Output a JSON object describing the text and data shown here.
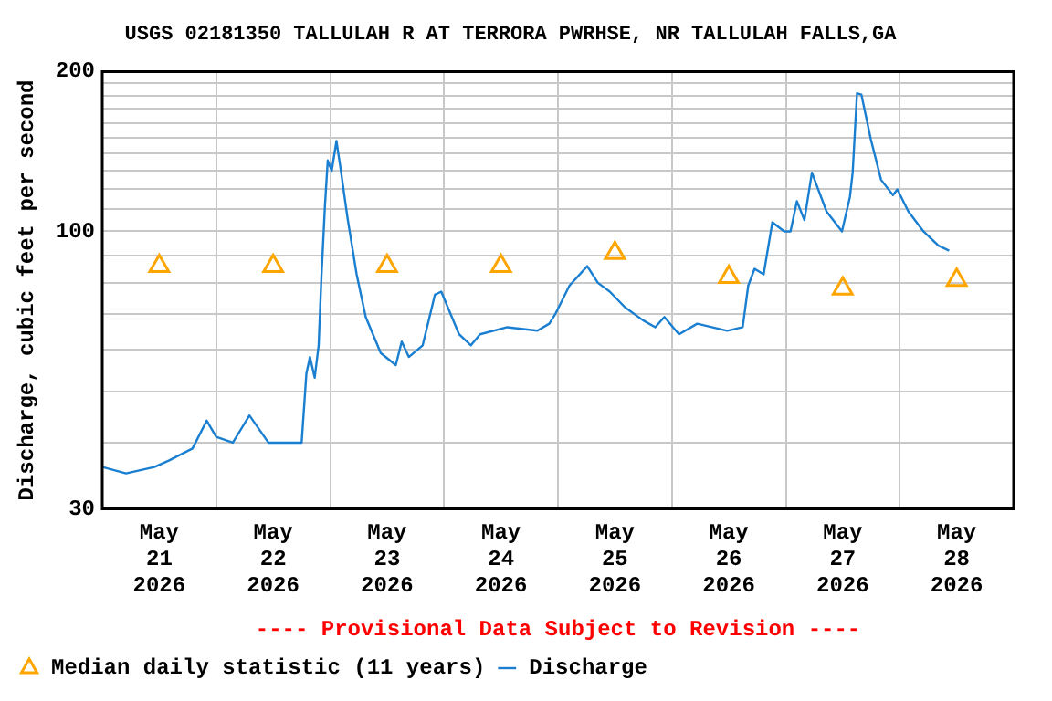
{
  "chart_data": {
    "type": "line",
    "title": "USGS 02181350 TALLULAH R AT TERRORA PWRHSE, NR TALLULAH FALLS,GA",
    "ylabel": "Discharge, cubic feet per second",
    "annotations": [
      "---- Provisional Data Subject to Revision ----"
    ],
    "series": [
      {
        "name": "Median daily statistic (11 years)",
        "type": "scatter",
        "marker": "triangle",
        "color": "#ffa500",
        "x": [
          "2026-05-21T12:00",
          "2026-05-22T12:00",
          "2026-05-23T12:00",
          "2026-05-24T12:00",
          "2026-05-25T12:00",
          "2026-05-26T12:00",
          "2026-05-27T12:00",
          "2026-05-28T12:00"
        ],
        "values": [
          86,
          86,
          86,
          86,
          91,
          82,
          78,
          81
        ]
      },
      {
        "name": "Discharge",
        "marker": "none",
        "color": "#1a7fd0",
        "x": [
          "2026-05-21T00:00",
          "2026-05-21T05:00",
          "2026-05-21T11:00",
          "2026-05-21T14:00",
          "2026-05-21T19:00",
          "2026-05-21T22:00",
          "2026-05-22T00:00",
          "2026-05-22T03:30",
          "2026-05-22T07:00",
          "2026-05-22T11:00",
          "2026-05-22T14:00",
          "2026-05-22T18:00",
          "2026-05-22T19:00",
          "2026-05-22T19:45",
          "2026-05-22T20:45",
          "2026-05-22T21:35",
          "2026-05-22T22:10",
          "2026-05-22T22:55",
          "2026-05-22T23:30",
          "2026-05-23T00:20",
          "2026-05-23T01:20",
          "2026-05-23T02:10",
          "2026-05-23T03:40",
          "2026-05-23T05:35",
          "2026-05-23T07:30",
          "2026-05-23T10:40",
          "2026-05-23T13:50",
          "2026-05-23T15:05",
          "2026-05-23T16:35",
          "2026-05-23T19:30",
          "2026-05-23T22:05",
          "2026-05-23T23:25",
          "2026-05-24T03:10",
          "2026-05-24T05:40",
          "2026-05-24T07:35",
          "2026-05-24T13:20",
          "2026-05-24T19:40",
          "2026-05-24T22:10",
          "2026-05-24T23:30",
          "2026-05-25T02:25",
          "2026-05-25T06:10",
          "2026-05-25T08:25",
          "2026-05-25T10:55",
          "2026-05-25T14:05",
          "2026-05-25T17:55",
          "2026-05-25T20:30",
          "2026-05-25T22:25",
          "2026-05-26T01:30",
          "2026-05-26T05:20",
          "2026-05-26T11:40",
          "2026-05-26T14:55",
          "2026-05-26T16:05",
          "2026-05-26T17:25",
          "2026-05-26T19:20",
          "2026-05-26T21:10",
          "2026-05-26T23:40",
          "2026-05-27T01:00",
          "2026-05-27T02:20",
          "2026-05-27T03:55",
          "2026-05-27T05:30",
          "2026-05-27T08:35",
          "2026-05-27T11:50",
          "2026-05-27T13:30",
          "2026-05-27T14:05",
          "2026-05-27T15:00",
          "2026-05-27T15:55",
          "2026-05-27T17:55",
          "2026-05-27T20:05",
          "2026-05-27T22:35",
          "2026-05-27T23:30",
          "2026-05-28T01:50",
          "2026-05-28T05:00",
          "2026-05-28T08:10",
          "2026-05-28T10:25"
        ],
        "values": [
          36,
          35,
          36,
          37,
          39,
          44,
          41,
          40,
          45,
          40,
          40,
          40,
          54,
          58,
          53,
          61,
          82,
          112,
          136,
          130,
          148,
          132,
          106,
          83,
          69,
          59,
          56,
          62,
          58,
          61,
          76,
          77,
          64,
          61,
          64,
          66,
          65,
          67,
          70,
          79,
          86,
          80,
          77,
          72,
          68,
          66,
          69,
          64,
          67,
          65,
          66,
          79,
          85,
          83,
          104,
          100,
          100,
          114,
          105,
          129,
          109,
          100,
          116,
          129,
          182,
          181,
          149,
          125,
          117,
          120,
          109,
          100,
          94,
          92
        ]
      }
    ],
    "xlim": [
      "2026-05-21T00:00",
      "2026-05-29T00:00"
    ],
    "xticks": [
      {
        "value": "2026-05-21T00:00",
        "label": null
      },
      {
        "value": "2026-05-21T12:00",
        "label": "May 21 2026"
      },
      {
        "value": "2026-05-22T00:00",
        "label": null
      },
      {
        "value": "2026-05-22T12:00",
        "label": "May 22 2026"
      },
      {
        "value": "2026-05-23T00:00",
        "label": null
      },
      {
        "value": "2026-05-23T12:00",
        "label": "May 23 2026"
      },
      {
        "value": "2026-05-24T00:00",
        "label": null
      },
      {
        "value": "2026-05-24T12:00",
        "label": "May 24 2026"
      },
      {
        "value": "2026-05-25T00:00",
        "label": null
      },
      {
        "value": "2026-05-25T12:00",
        "label": "May 25 2026"
      },
      {
        "value": "2026-05-26T00:00",
        "label": null
      },
      {
        "value": "2026-05-26T12:00",
        "label": "May 26 2026"
      },
      {
        "value": "2026-05-27T00:00",
        "label": null
      },
      {
        "value": "2026-05-27T12:00",
        "label": "May 27 2026"
      },
      {
        "value": "2026-05-28T00:00",
        "label": null
      },
      {
        "value": "2026-05-28T12:00",
        "label": "May 28 2026"
      },
      {
        "value": "2026-05-29T00:00",
        "label": null
      }
    ],
    "ylim": [
      30,
      200
    ],
    "yticks": [
      30,
      {
        "value": 40,
        "label": null
      },
      {
        "value": 50,
        "label": null
      },
      {
        "value": 60,
        "label": null
      },
      {
        "value": 70,
        "label": null
      },
      {
        "value": 80,
        "label": null
      },
      {
        "value": 90,
        "label": null
      },
      100,
      {
        "value": 110,
        "label": null
      },
      {
        "value": 120,
        "label": null
      },
      {
        "value": 130,
        "label": null
      },
      {
        "value": 140,
        "label": null
      },
      {
        "value": 150,
        "label": null
      },
      {
        "value": 160,
        "label": null
      },
      {
        "value": 170,
        "label": null
      },
      {
        "value": 180,
        "label": null
      },
      {
        "value": 190,
        "label": null
      },
      200
    ],
    "log": true,
    "grid": true,
    "legend": "bottom"
  }
}
